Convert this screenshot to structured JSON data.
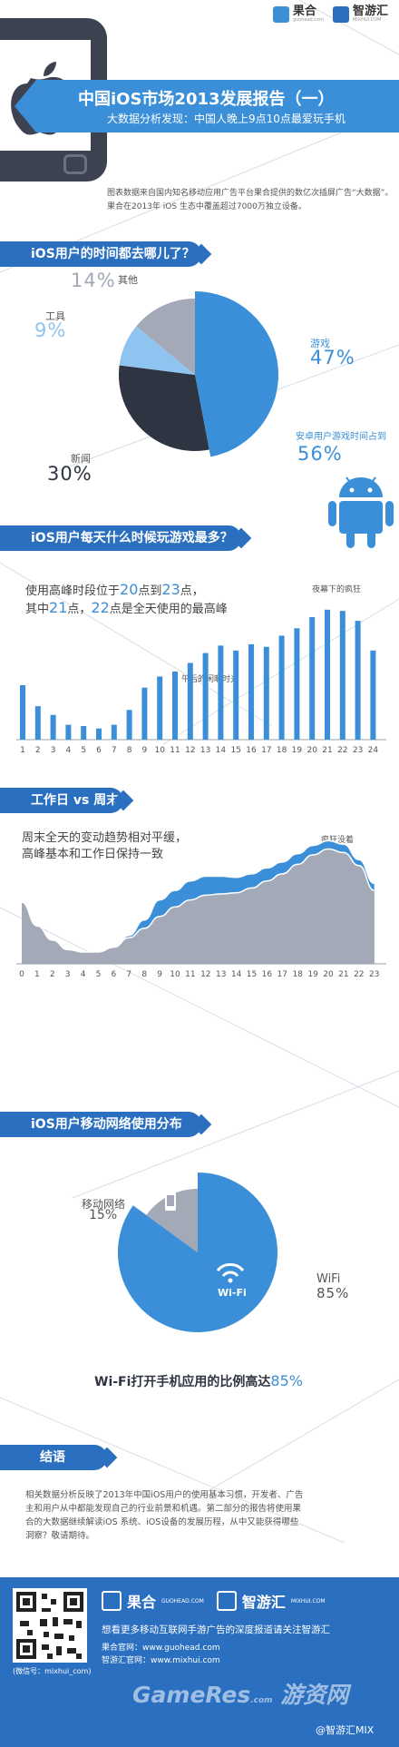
{
  "header": {
    "logo1_name": "果合",
    "logo1_url": "guohead.com",
    "logo2_name": "智游汇",
    "logo2_url": "MIXHUI.COM",
    "title": "中国iOS市场2013发展报告（一）",
    "subtitle": "大数据分析发现：中国人晚上9点10点最爱玩手机",
    "intro_lines": [
      "图表数据来自国内知名移动应用广告平台果合提供的数亿次插屏广告“大数据”。",
      "果合在2013年 iOS 生态中覆盖超过7000万独立设备。"
    ]
  },
  "section1": {
    "heading": "iOS用户的时间都去哪儿了？",
    "labels": {
      "game": "游戏",
      "news": "新闻",
      "tools": "工具",
      "other": "其他"
    },
    "percents": {
      "game": "47%",
      "news": "30%",
      "tools": "9%",
      "other": "14%"
    },
    "android_note": "安卓用户游戏时间占到",
    "android_pct": "56%"
  },
  "section2": {
    "heading": "iOS用户每天什么时候玩游戏最多？",
    "note_prefix": "使用高峰时段位于",
    "note_h1": "20",
    "note_mid1": "点到",
    "note_h2": "23",
    "note_suffix1": "点，",
    "note2_prefix": "其中",
    "note2_h1": "21",
    "note2_mid": "点，",
    "note2_h2": "22",
    "note2_suffix": "点是全天使用的最高峰",
    "annotation_noon": "午后的闲暇时光",
    "annotation_night": "夜幕下的疯狂"
  },
  "section3": {
    "heading": "工作日 vs 周末",
    "note_line1": "周末全天的变动趋势相对平缓，",
    "note_line2": "高峰基本和工作日保持一致",
    "annotation": "疯狂没着"
  },
  "section4": {
    "heading": "iOS用户移动网络使用分布",
    "mobile_label": "移动网络",
    "mobile_pct": "15%",
    "wifi_label": "WiFi",
    "wifi_pct": "85%",
    "wifi_icon_text": "Wi-Fi",
    "conclusion_prefix": "Wi-Fi打开手机应用的比例高达",
    "conclusion_pct": "85%"
  },
  "section5": {
    "heading": "结语",
    "lines": [
      "相关数据分析反映了2013年中国iOS用户的使用基本习惯，开发者、广告",
      "主和用户从中都能发现自己的行业前景和机遇。第二部分的报告将使用果",
      "合的大数据继续解读iOS 系统、iOS设备的发展历程，从中又能获得哪些",
      "洞察？敬请期待。"
    ]
  },
  "footer": {
    "logo1_name": "果合",
    "logo1_url": "GUOHEAD.COM",
    "logo2_name": "智游汇",
    "logo2_url": "MIXHUI.COM",
    "tagline": "想看更多移动互联网手游广告的深度报道请关注智游汇",
    "site1": "果合官网：www.guohead.com",
    "site2": "智游汇官网：www.mixhui.com",
    "wechat": "(微信号：mixhui_com)",
    "watermark": "GameRes",
    "watermark_sub": "游资网",
    "watermark2": ".com",
    "credit": "@智游汇MIX"
  },
  "colors": {
    "blue": "#3a8fd8",
    "dark": "#2e3442",
    "light_blue": "#8fc4f0",
    "gray": "#a3a9b6",
    "header_blue": "#2a6fc0"
  },
  "chart_data": [
    {
      "type": "pie",
      "title": "iOS用户的时间都去哪儿了？",
      "slices": [
        {
          "label": "游戏",
          "value": 47
        },
        {
          "label": "新闻",
          "value": 30
        },
        {
          "label": "工具",
          "value": 9
        },
        {
          "label": "其他",
          "value": 14
        }
      ]
    },
    {
      "type": "bar",
      "title": "iOS用户每天什么时候玩游戏最多？",
      "categories": [
        "1",
        "2",
        "3",
        "4",
        "5",
        "6",
        "7",
        "8",
        "9",
        "10",
        "11",
        "12",
        "13",
        "14",
        "15",
        "16",
        "17",
        "18",
        "19",
        "20",
        "21",
        "22",
        "23",
        "24"
      ],
      "values": [
        44,
        27,
        20,
        12,
        11,
        9,
        12,
        24,
        42,
        51,
        55,
        62,
        70,
        76,
        72,
        77,
        75,
        84,
        90,
        99,
        105,
        104,
        96,
        72
      ],
      "ylim": [
        0,
        110
      ]
    },
    {
      "type": "area",
      "title": "工作日 vs 周末",
      "x": [
        "0",
        "1",
        "2",
        "3",
        "4",
        "5",
        "6",
        "7",
        "8",
        "9",
        "10",
        "11",
        "12",
        "13",
        "14",
        "15",
        "16",
        "17",
        "18",
        "19",
        "20",
        "21",
        "22",
        "23"
      ],
      "series": [
        {
          "name": "",
          "values": [
            46,
            28,
            18,
            11,
            9,
            9,
            13,
            24,
            37,
            54,
            62,
            70,
            74,
            74,
            73,
            76,
            81,
            86,
            93,
            100,
            104,
            101,
            88,
            68
          ]
        },
        {
          "name": "",
          "values": [
            52,
            32,
            20,
            12,
            10,
            10,
            14,
            22,
            30,
            40,
            48,
            54,
            58,
            59,
            60,
            64,
            70,
            76,
            84,
            92,
            97,
            94,
            83,
            62
          ]
        }
      ],
      "ylim": [
        0,
        115
      ]
    },
    {
      "type": "pie",
      "title": "iOS用户移动网络使用分布",
      "slices": [
        {
          "label": "WiFi",
          "value": 85
        },
        {
          "label": "移动网络",
          "value": 15
        }
      ]
    }
  ]
}
